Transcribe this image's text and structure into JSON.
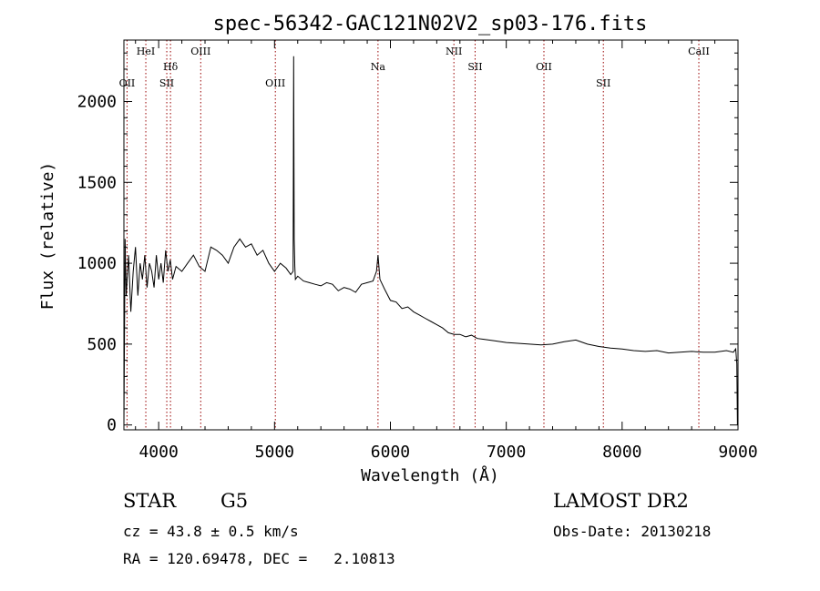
{
  "chart_data": {
    "type": "line",
    "title": "spec-56342-GAC121N02V2_sp03-176.fits",
    "xlabel": "Wavelength (Å)",
    "ylabel": "Flux (relative)",
    "xlim": [
      3700,
      9000
    ],
    "ylim": [
      -30,
      2380
    ],
    "xticks": [
      4000,
      5000,
      6000,
      7000,
      8000,
      9000
    ],
    "yticks": [
      0,
      500,
      1000,
      1500,
      2000
    ],
    "grid": false,
    "line_color": "#000000",
    "marker_color": "#990000",
    "spectral_lines": [
      {
        "label": "OII",
        "x": 3727,
        "row": 3
      },
      {
        "label": "HeI",
        "x": 3889,
        "row": 1
      },
      {
        "label": "SII",
        "x": 4070,
        "row": 3
      },
      {
        "label": "Hδ",
        "x": 4102,
        "row": 2
      },
      {
        "label": "OIII",
        "x": 4363,
        "row": 1
      },
      {
        "label": "OIII",
        "x": 5007,
        "row": 3
      },
      {
        "label": "Na",
        "x": 5893,
        "row": 2
      },
      {
        "label": "NII",
        "x": 6548,
        "row": 1
      },
      {
        "label": "SII",
        "x": 6731,
        "row": 2
      },
      {
        "label": "OII",
        "x": 7325,
        "row": 2
      },
      {
        "label": "SII",
        "x": 7838,
        "row": 3
      },
      {
        "label": "CaII",
        "x": 8662,
        "row": 1
      }
    ],
    "series": [
      {
        "x": [
          3700,
          3710,
          3720,
          3740,
          3760,
          3780,
          3800,
          3820,
          3840,
          3860,
          3880,
          3900,
          3920,
          3940,
          3960,
          3980,
          4000,
          4020,
          4040,
          4060,
          4080,
          4100,
          4120,
          4150,
          4200,
          4250,
          4300,
          4350,
          4400,
          4450,
          4500,
          4550,
          4600,
          4650,
          4700,
          4750,
          4800,
          4850,
          4900,
          4950,
          5000,
          5050,
          5100,
          5140,
          5160,
          5165,
          5170,
          5175,
          5180,
          5200,
          5250,
          5300,
          5350,
          5400,
          5450,
          5500,
          5550,
          5600,
          5650,
          5700,
          5750,
          5800,
          5850,
          5880,
          5893,
          5910,
          5950,
          6000,
          6050,
          6100,
          6150,
          6200,
          6250,
          6300,
          6350,
          6400,
          6450,
          6500,
          6550,
          6600,
          6650,
          6700,
          6750,
          6800,
          6900,
          7000,
          7100,
          7200,
          7300,
          7400,
          7500,
          7600,
          7700,
          7800,
          7900,
          8000,
          8100,
          8200,
          8300,
          8400,
          8500,
          8600,
          8700,
          8800,
          8900,
          8960,
          8980,
          8990,
          8995
        ],
        "y": [
          0,
          1150,
          800,
          1050,
          700,
          950,
          1100,
          800,
          1000,
          900,
          1050,
          850,
          1000,
          950,
          850,
          1050,
          900,
          1000,
          880,
          1080,
          950,
          1020,
          900,
          980,
          950,
          1000,
          1050,
          980,
          950,
          1100,
          1080,
          1050,
          1000,
          1100,
          1150,
          1100,
          1120,
          1050,
          1080,
          1000,
          950,
          1000,
          970,
          930,
          950,
          2280,
          1150,
          980,
          900,
          920,
          890,
          880,
          870,
          860,
          880,
          870,
          830,
          850,
          840,
          820,
          870,
          880,
          890,
          950,
          1050,
          900,
          840,
          770,
          760,
          720,
          730,
          700,
          680,
          660,
          640,
          620,
          600,
          570,
          560,
          560,
          545,
          555,
          535,
          530,
          520,
          510,
          505,
          500,
          495,
          500,
          515,
          525,
          500,
          485,
          475,
          470,
          460,
          455,
          460,
          445,
          450,
          455,
          450,
          450,
          460,
          450,
          470,
          380,
          0
        ]
      }
    ]
  },
  "footer": {
    "object_class": "STAR",
    "subclass": "G5",
    "survey": "LAMOST DR2",
    "redshift": "cz = 43.8 ± 0.5 km/s",
    "obs_date": "Obs-Date: 20130218",
    "coords": "RA = 120.69478, DEC =   2.10813"
  }
}
